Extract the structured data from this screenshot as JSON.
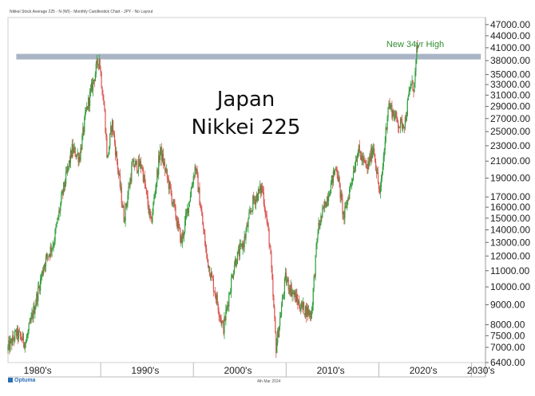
{
  "header_text": "Nikkei Stock Average 225 - N (WI) - Monthly Candlestick Chart - JPY - No Layout",
  "brand": "Optuma",
  "footer_date": "4th Mar 2024",
  "chart_data": {
    "type": "candlestick",
    "title_lines": [
      "Japan",
      "Nikkei 225"
    ],
    "annotation": "New 34yr High",
    "y_scale": "log",
    "ylim": [
      6400,
      49000
    ],
    "y_ticks": [
      "47000.00",
      "44000.00",
      "41000.00",
      "38000.00",
      "35000.00",
      "33000.00",
      "31000.00",
      "29000.00",
      "27000.00",
      "25000.00",
      "23000.00",
      "21000.00",
      "19000.00",
      "17000.00",
      "16000.00",
      "15000.00",
      "14000.00",
      "13000.00",
      "12000.00",
      "11000.00",
      "10000.00",
      "9000.00",
      "8000.00",
      "7500.00",
      "7000.00",
      "6400.00"
    ],
    "x_ticks": [
      "1980's",
      "1990's",
      "2000's",
      "2010's",
      "2020's",
      "2030's"
    ],
    "xlim": [
      1980,
      2031.5
    ],
    "resistance_level": 38900,
    "colors": {
      "up": "#2e9e3a",
      "down": "#d9534f",
      "resistance": "#a9b4c4",
      "annotation": "#2f8f2f"
    },
    "series": [
      {
        "t": 1980.0,
        "v": 6900
      },
      {
        "t": 1981.0,
        "v": 7600
      },
      {
        "t": 1982.0,
        "v": 7200
      },
      {
        "t": 1983.0,
        "v": 9000
      },
      {
        "t": 1984.0,
        "v": 11500
      },
      {
        "t": 1985.0,
        "v": 13000
      },
      {
        "t": 1986.0,
        "v": 17500
      },
      {
        "t": 1987.0,
        "v": 22500
      },
      {
        "t": 1987.8,
        "v": 21500
      },
      {
        "t": 1988.5,
        "v": 28000
      },
      {
        "t": 1989.9,
        "v": 38900
      },
      {
        "t": 1990.5,
        "v": 28000
      },
      {
        "t": 1990.8,
        "v": 21000
      },
      {
        "t": 1991.3,
        "v": 26500
      },
      {
        "t": 1992.6,
        "v": 15000
      },
      {
        "t": 1993.5,
        "v": 20500
      },
      {
        "t": 1994.5,
        "v": 20500
      },
      {
        "t": 1995.5,
        "v": 14500
      },
      {
        "t": 1996.5,
        "v": 22500
      },
      {
        "t": 1997.5,
        "v": 18000
      },
      {
        "t": 1998.8,
        "v": 13000
      },
      {
        "t": 2000.3,
        "v": 20500
      },
      {
        "t": 2001.5,
        "v": 12000
      },
      {
        "t": 2002.5,
        "v": 9500
      },
      {
        "t": 2003.3,
        "v": 7800
      },
      {
        "t": 2004.5,
        "v": 11500
      },
      {
        "t": 2005.5,
        "v": 13000
      },
      {
        "t": 2006.5,
        "v": 16500
      },
      {
        "t": 2007.5,
        "v": 18000
      },
      {
        "t": 2008.3,
        "v": 13000
      },
      {
        "t": 2009.0,
        "v": 7000
      },
      {
        "t": 2010.0,
        "v": 10500
      },
      {
        "t": 2011.5,
        "v": 9000
      },
      {
        "t": 2012.8,
        "v": 8500
      },
      {
        "t": 2013.5,
        "v": 14000
      },
      {
        "t": 2015.5,
        "v": 20500
      },
      {
        "t": 2016.3,
        "v": 15000
      },
      {
        "t": 2017.8,
        "v": 22500
      },
      {
        "t": 2018.8,
        "v": 20000
      },
      {
        "t": 2019.5,
        "v": 23000
      },
      {
        "t": 2020.2,
        "v": 17000
      },
      {
        "t": 2021.1,
        "v": 29500
      },
      {
        "t": 2022.3,
        "v": 26000
      },
      {
        "t": 2022.9,
        "v": 26500
      },
      {
        "t": 2023.5,
        "v": 33000
      },
      {
        "t": 2023.9,
        "v": 32500
      },
      {
        "t": 2024.17,
        "v": 40100
      }
    ]
  }
}
